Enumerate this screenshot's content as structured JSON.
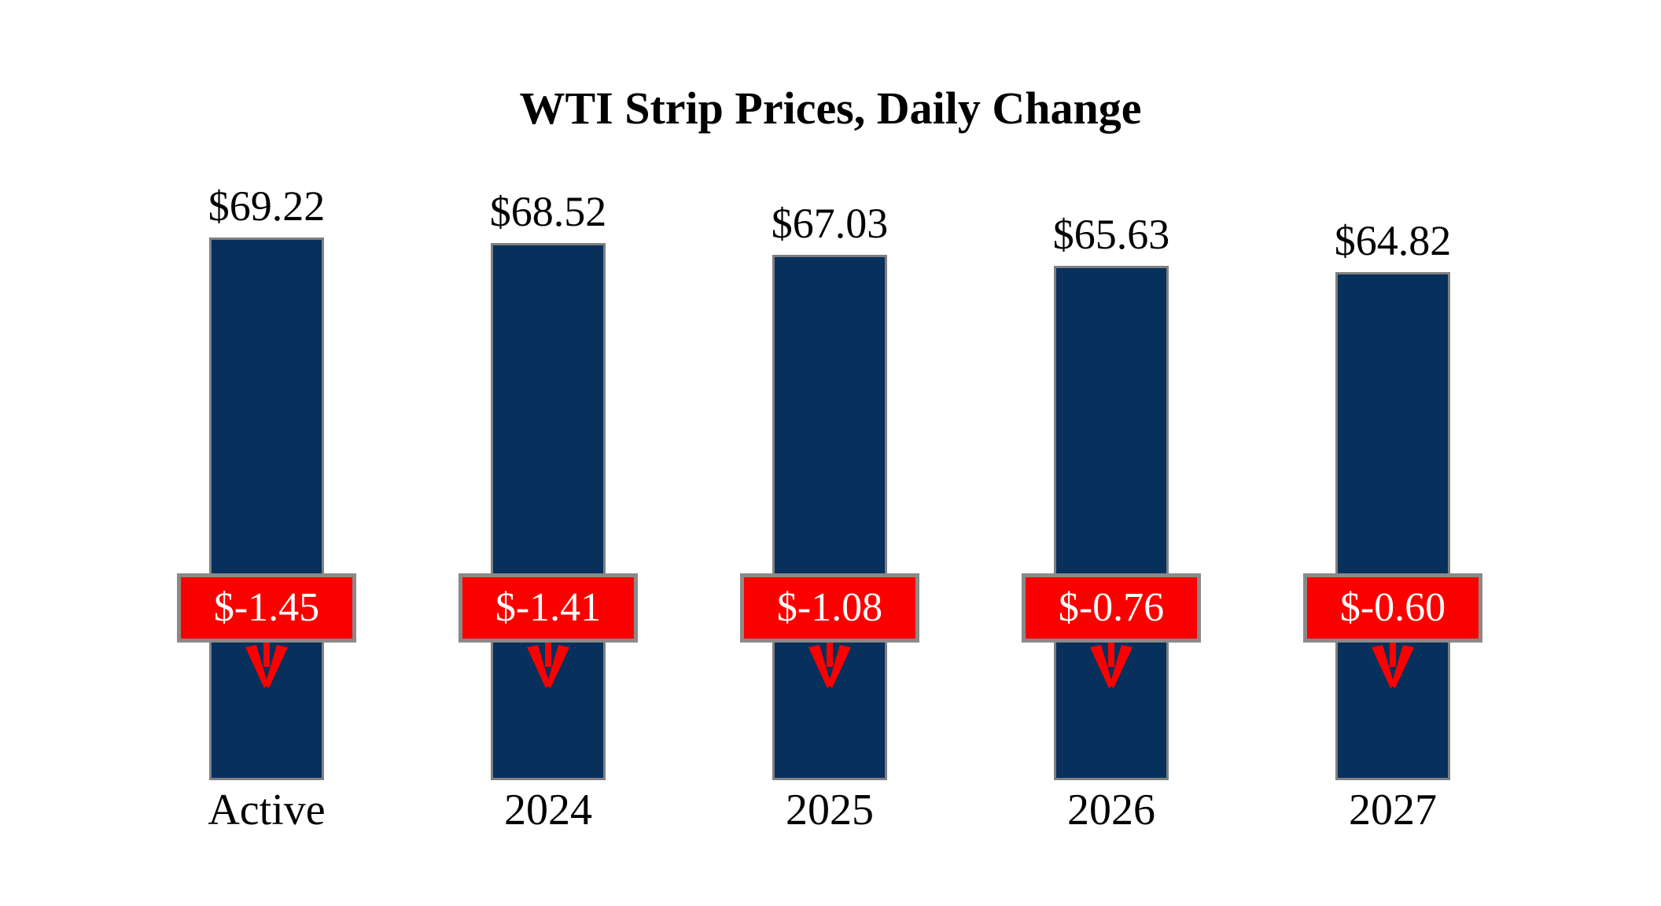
{
  "page": {
    "background": "#FFFFFF"
  },
  "chart_data": {
    "type": "bar",
    "title": "WTI Strip Prices, Daily Change",
    "categories": [
      "Active",
      "2024",
      "2025",
      "2026",
      "2027"
    ],
    "series": [
      {
        "name": "strip_price",
        "values": [
          69.22,
          68.52,
          67.03,
          65.63,
          64.82
        ],
        "labels": [
          "$69.22",
          "$68.52",
          "$67.03",
          "$65.63",
          "$64.82"
        ]
      },
      {
        "name": "daily_change",
        "values": [
          -1.45,
          -1.41,
          -1.08,
          -0.76,
          -0.6
        ],
        "labels": [
          "$-1.45",
          "$-1.41",
          "$-1.08",
          "$-0.76",
          "$-0.60"
        ]
      }
    ],
    "ylim": [
      0,
      75
    ],
    "grid": false,
    "legend": "none",
    "colors": {
      "bar_fill": "#07305C",
      "bar_border": "#808080",
      "change_fill": "#FC0000",
      "change_border": "#8A8A8A",
      "change_text": "#FFFFFF",
      "label_text": "#000000",
      "arrow": "#FC0000"
    }
  }
}
